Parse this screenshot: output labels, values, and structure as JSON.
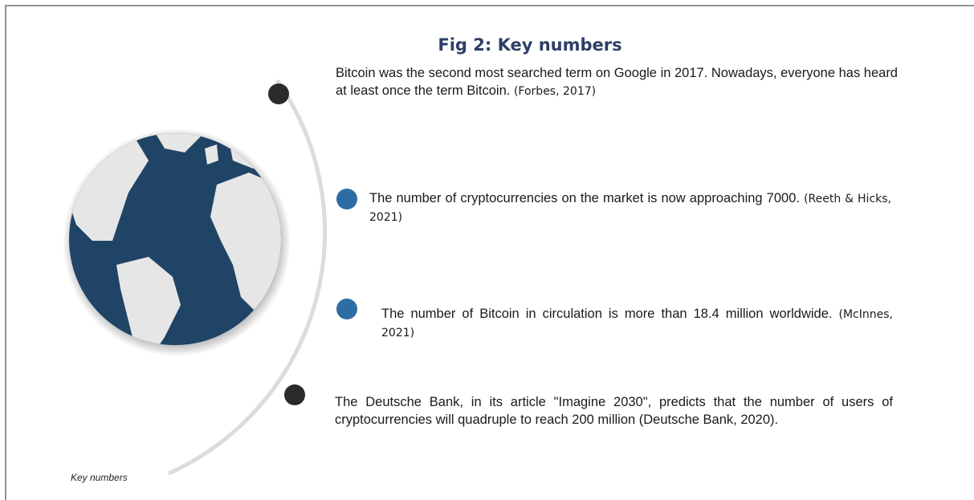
{
  "title": "Fig 2: Key numbers",
  "items": [
    {
      "text": "Bitcoin was the second most searched term on Google in 2017. Nowadays, everyone has heard at least once the term Bitcoin.",
      "citation": "(Forbes, 2017)"
    },
    {
      "text": "The number of cryptocurrencies on the market is now approaching 7000.",
      "citation": "(Reeth & Hicks, 2021)"
    },
    {
      "text": "The number of Bitcoin in circulation is more than 18.4 million worldwide.",
      "citation": "(McInnes, 2021)"
    },
    {
      "text": "The Deutsche Bank, in its article \"Imagine 2030\", predicts that the number of users of cryptocurrencies will quadruple to reach 200 million (Deutsche Bank, 2020)."
    }
  ],
  "caption": "Key numbers"
}
